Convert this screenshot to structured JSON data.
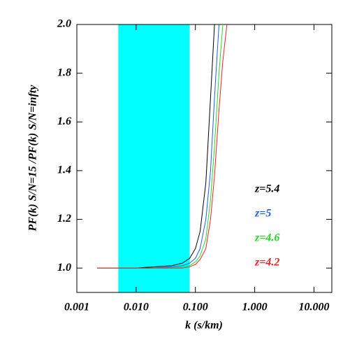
{
  "chart_data": {
    "type": "line",
    "xlabel": "k (s/km)",
    "ylabel": "PF(k) S/N=15 /PF(k) S/N=infty",
    "xscale": "log",
    "xlim": [
      0.001,
      20
    ],
    "ylim": [
      0.9,
      2.0
    ],
    "xticks": [
      0.001,
      {
        "value": 0.01,
        "label": "0.010"
      },
      {
        "value": 0.1,
        "label": "0.100"
      },
      {
        "value": 1,
        "label": "1.000"
      },
      {
        "value": 10,
        "label": "10.000"
      }
    ],
    "yticks": [
      {
        "value": 1,
        "label": "1.0"
      },
      {
        "value": 1.2,
        "label": "1.2"
      },
      {
        "value": 1.4,
        "label": "1.4"
      },
      {
        "value": 1.6,
        "label": "1.6"
      },
      {
        "value": 1.8,
        "label": "1.8"
      },
      {
        "value": 2,
        "label": "2.0"
      }
    ],
    "shaded_xrange": [
      0.005,
      0.08
    ],
    "shade_color": "#00ffff",
    "series": [
      {
        "name": "z=5.4",
        "color": "#000000",
        "x": [
          0.0022,
          0.005,
          0.01,
          0.02,
          0.04,
          0.06,
          0.08,
          0.1,
          0.12,
          0.15,
          0.18,
          0.21
        ],
        "values": [
          1.0,
          1.0,
          1.0,
          1.005,
          1.01,
          1.02,
          1.04,
          1.08,
          1.15,
          1.35,
          1.7,
          2.0
        ]
      },
      {
        "name": "z=5",
        "color": "#1a5cff",
        "x": [
          0.0022,
          0.005,
          0.01,
          0.02,
          0.04,
          0.06,
          0.08,
          0.1,
          0.12,
          0.15,
          0.18,
          0.21,
          0.25
        ],
        "values": [
          1.0,
          1.0,
          1.0,
          1.0,
          1.005,
          1.01,
          1.02,
          1.04,
          1.08,
          1.2,
          1.4,
          1.7,
          2.0
        ]
      },
      {
        "name": "z=4.6",
        "color": "#22dd22",
        "x": [
          0.0022,
          0.005,
          0.01,
          0.02,
          0.04,
          0.06,
          0.08,
          0.1,
          0.12,
          0.15,
          0.18,
          0.21,
          0.25,
          0.29
        ],
        "values": [
          1.0,
          1.0,
          1.0,
          1.0,
          1.0,
          1.005,
          1.01,
          1.025,
          1.05,
          1.12,
          1.28,
          1.5,
          1.8,
          2.0
        ]
      },
      {
        "name": "z=4.2",
        "color": "#ee2222",
        "x": [
          0.0022,
          0.005,
          0.01,
          0.02,
          0.04,
          0.06,
          0.08,
          0.1,
          0.12,
          0.15,
          0.18,
          0.21,
          0.25,
          0.29,
          0.34
        ],
        "values": [
          1.0,
          1.0,
          1.0,
          1.0,
          1.0,
          1.0,
          1.005,
          1.015,
          1.035,
          1.08,
          1.2,
          1.38,
          1.65,
          1.85,
          2.0
        ]
      }
    ]
  }
}
